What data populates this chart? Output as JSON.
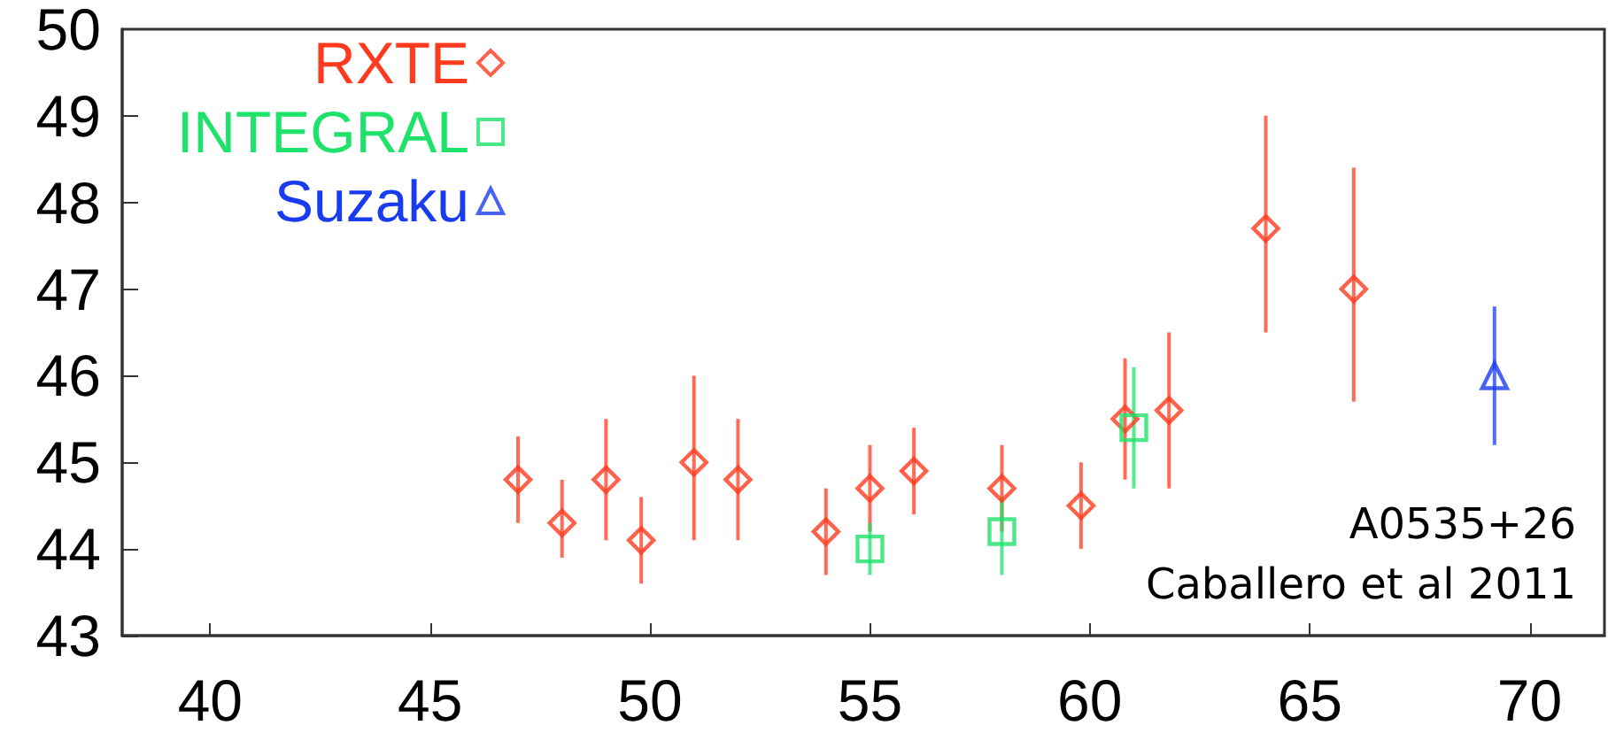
{
  "chart_data": {
    "type": "scatter",
    "xlim": [
      38,
      71.7
    ],
    "xticks": [
      40,
      45,
      50,
      55,
      60,
      65,
      70
    ],
    "ylim": [
      43,
      50
    ],
    "yticks": [
      43,
      44,
      45,
      46,
      47,
      48,
      49,
      50
    ],
    "grid": false,
    "legend": "top left",
    "annotations": [
      "A0535+26",
      "Caballero et al 2011"
    ],
    "series": [
      {
        "name": "RXTE",
        "color": "#ff3a1e",
        "marker": "diamond",
        "x": [
          47,
          48,
          49,
          49.8,
          51,
          52,
          54,
          55,
          56,
          58,
          59.8,
          60.8,
          61.8,
          64,
          66
        ],
        "values": [
          44.8,
          44.3,
          44.8,
          44.1,
          45.0,
          44.8,
          44.2,
          44.7,
          44.9,
          44.7,
          44.5,
          45.5,
          45.6,
          47.7,
          47.0
        ],
        "errors": [
          [
            44.3,
            45.3
          ],
          [
            43.9,
            44.8
          ],
          [
            44.1,
            45.5
          ],
          [
            43.6,
            44.6
          ],
          [
            44.1,
            46.0
          ],
          [
            44.1,
            45.5
          ],
          [
            43.7,
            44.7
          ],
          [
            44.2,
            45.2
          ],
          [
            44.4,
            45.4
          ],
          [
            44.2,
            45.2
          ],
          [
            44.0,
            45.0
          ],
          [
            44.8,
            46.2
          ],
          [
            44.7,
            46.5
          ],
          [
            46.5,
            49.0
          ],
          [
            45.7,
            48.4
          ]
        ]
      },
      {
        "name": "INTEGRAL",
        "color": "#1ee26a",
        "marker": "square",
        "x": [
          55,
          58,
          61
        ],
        "values": [
          44.0,
          44.2,
          45.4
        ],
        "errors": [
          [
            43.7,
            44.3
          ],
          [
            43.7,
            44.6
          ],
          [
            44.7,
            46.1
          ]
        ]
      },
      {
        "name": "Suzaku",
        "color": "#1a3cf0",
        "marker": "triangle",
        "x": [
          69.2
        ],
        "values": [
          46.0
        ],
        "errors": [
          [
            45.2,
            46.8
          ]
        ]
      }
    ]
  }
}
